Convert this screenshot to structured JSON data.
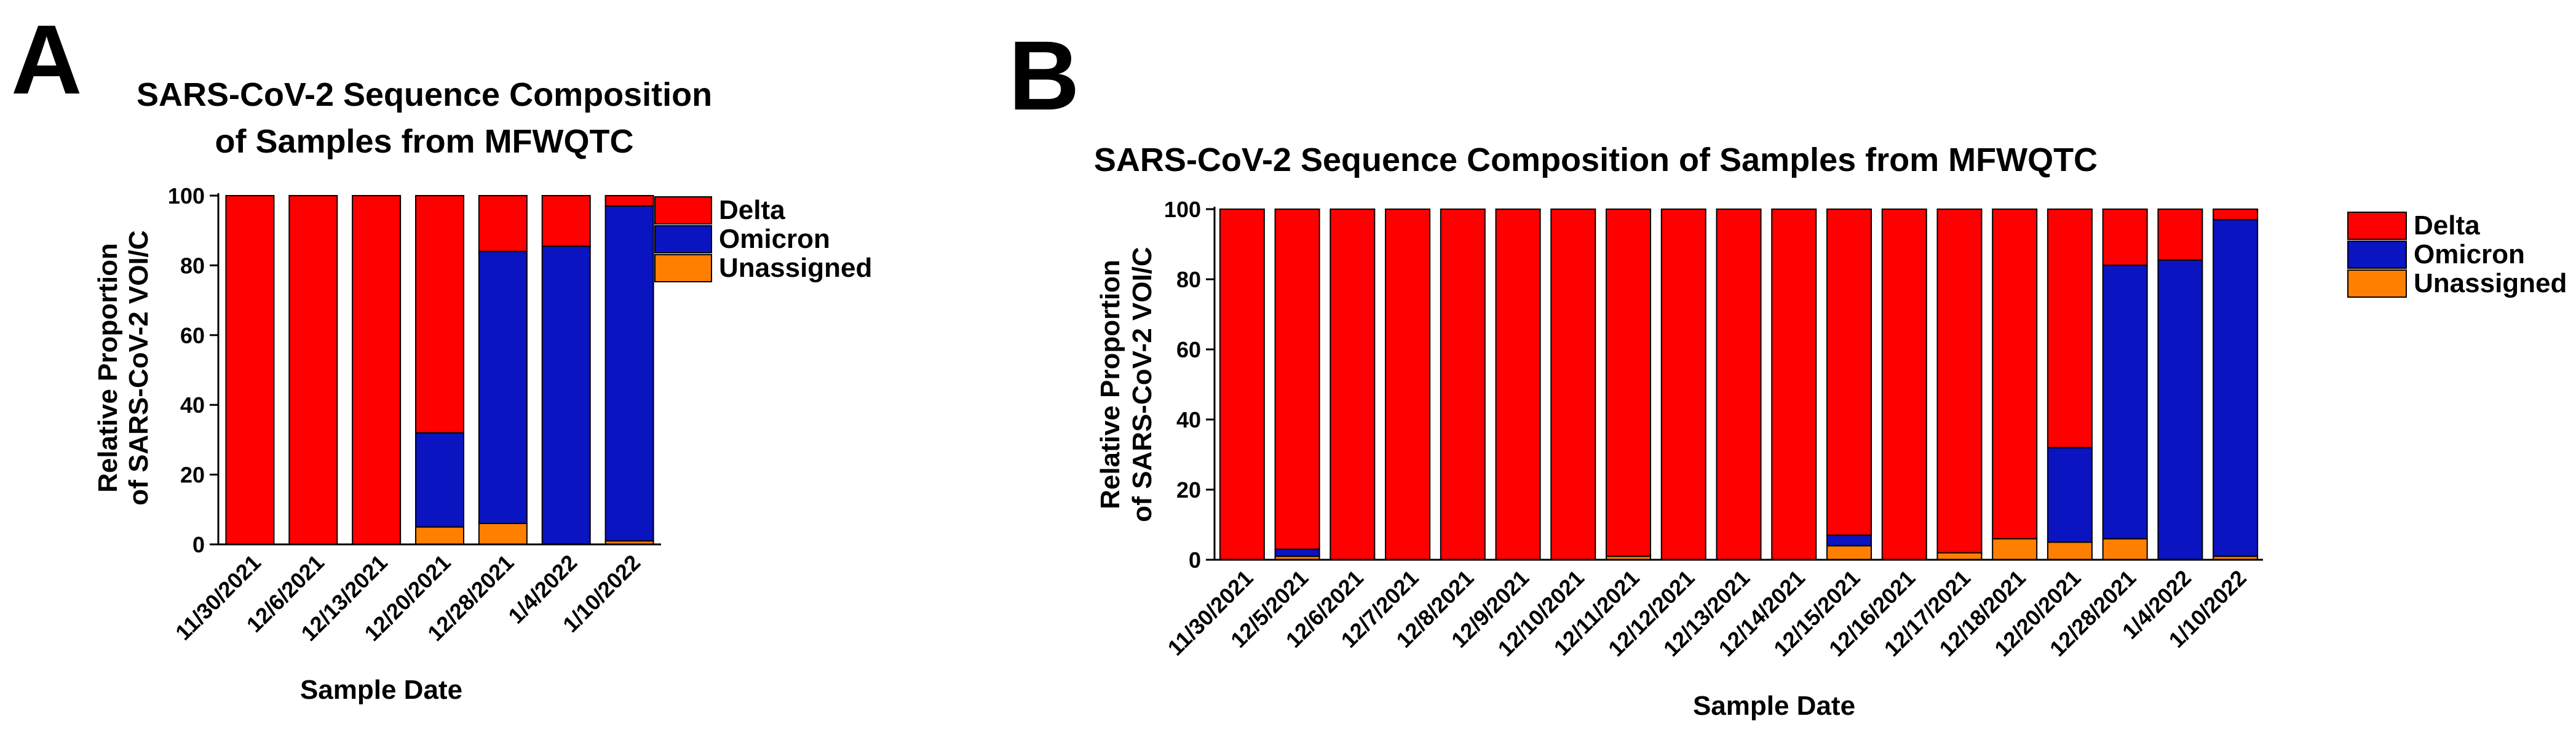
{
  "colors": {
    "Delta": "#ff0000",
    "Omicron": "#0a14c0",
    "Unassigned": "#ff8000"
  },
  "chart_data": [
    {
      "type": "bar",
      "stacked": true,
      "panel_label": "A",
      "title_lines": [
        "SARS-CoV-2 Sequence Composition",
        "of Samples from MFWQTC"
      ],
      "xlabel": "Sample Date",
      "ylabel_lines": [
        "Relative Proportion",
        "of SARS-CoV-2 VOI/C"
      ],
      "ylim": [
        0,
        100
      ],
      "yticks": [
        0,
        20,
        40,
        60,
        80,
        100
      ],
      "legend_position": "top-right",
      "categories": [
        "11/30/2021",
        "12/6/2021",
        "12/13/2021",
        "12/20/2021",
        "12/28/2021",
        "1/4/2022",
        "1/10/2022"
      ],
      "series": [
        {
          "name": "Unassigned",
          "values": [
            0,
            0,
            0,
            5,
            6,
            0,
            1
          ]
        },
        {
          "name": "Omicron",
          "values": [
            0,
            0,
            0,
            27,
            78,
            85.5,
            96
          ]
        },
        {
          "name": "Delta",
          "values": [
            100,
            100,
            100,
            68,
            16,
            14.5,
            3
          ]
        }
      ]
    },
    {
      "type": "bar",
      "stacked": true,
      "panel_label": "B",
      "title_lines": [
        "SARS-CoV-2 Sequence Composition of Samples from MFWQTC"
      ],
      "xlabel": "Sample Date",
      "ylabel_lines": [
        "Relative Proportion",
        "of SARS-CoV-2 VOI/C"
      ],
      "ylim": [
        0,
        100
      ],
      "yticks": [
        0,
        20,
        40,
        60,
        80,
        100
      ],
      "legend_position": "right",
      "categories": [
        "11/30/2021",
        "12/5/2021",
        "12/6/2021",
        "12/7/2021",
        "12/8/2021",
        "12/9/2021",
        "12/10/2021",
        "12/11/2021",
        "12/12/2021",
        "12/13/2021",
        "12/14/2021",
        "12/15/2021",
        "12/16/2021",
        "12/17/2021",
        "12/18/2021",
        "12/20/2021",
        "12/28/2021",
        "1/4/2022",
        "1/10/2022"
      ],
      "series": [
        {
          "name": "Unassigned",
          "values": [
            0,
            1,
            0,
            0,
            0,
            0,
            0,
            1,
            0,
            0,
            0,
            4,
            0,
            2,
            6,
            5,
            6,
            0,
            1
          ]
        },
        {
          "name": "Omicron",
          "values": [
            0,
            2,
            0,
            0,
            0,
            0,
            0,
            0,
            0,
            0,
            0,
            3,
            0,
            0,
            0,
            27,
            78,
            85.5,
            96
          ]
        },
        {
          "name": "Delta",
          "values": [
            100,
            97,
            100,
            100,
            100,
            100,
            100,
            99,
            100,
            100,
            100,
            93,
            100,
            98,
            94,
            68,
            16,
            14.5,
            3
          ]
        }
      ]
    }
  ]
}
